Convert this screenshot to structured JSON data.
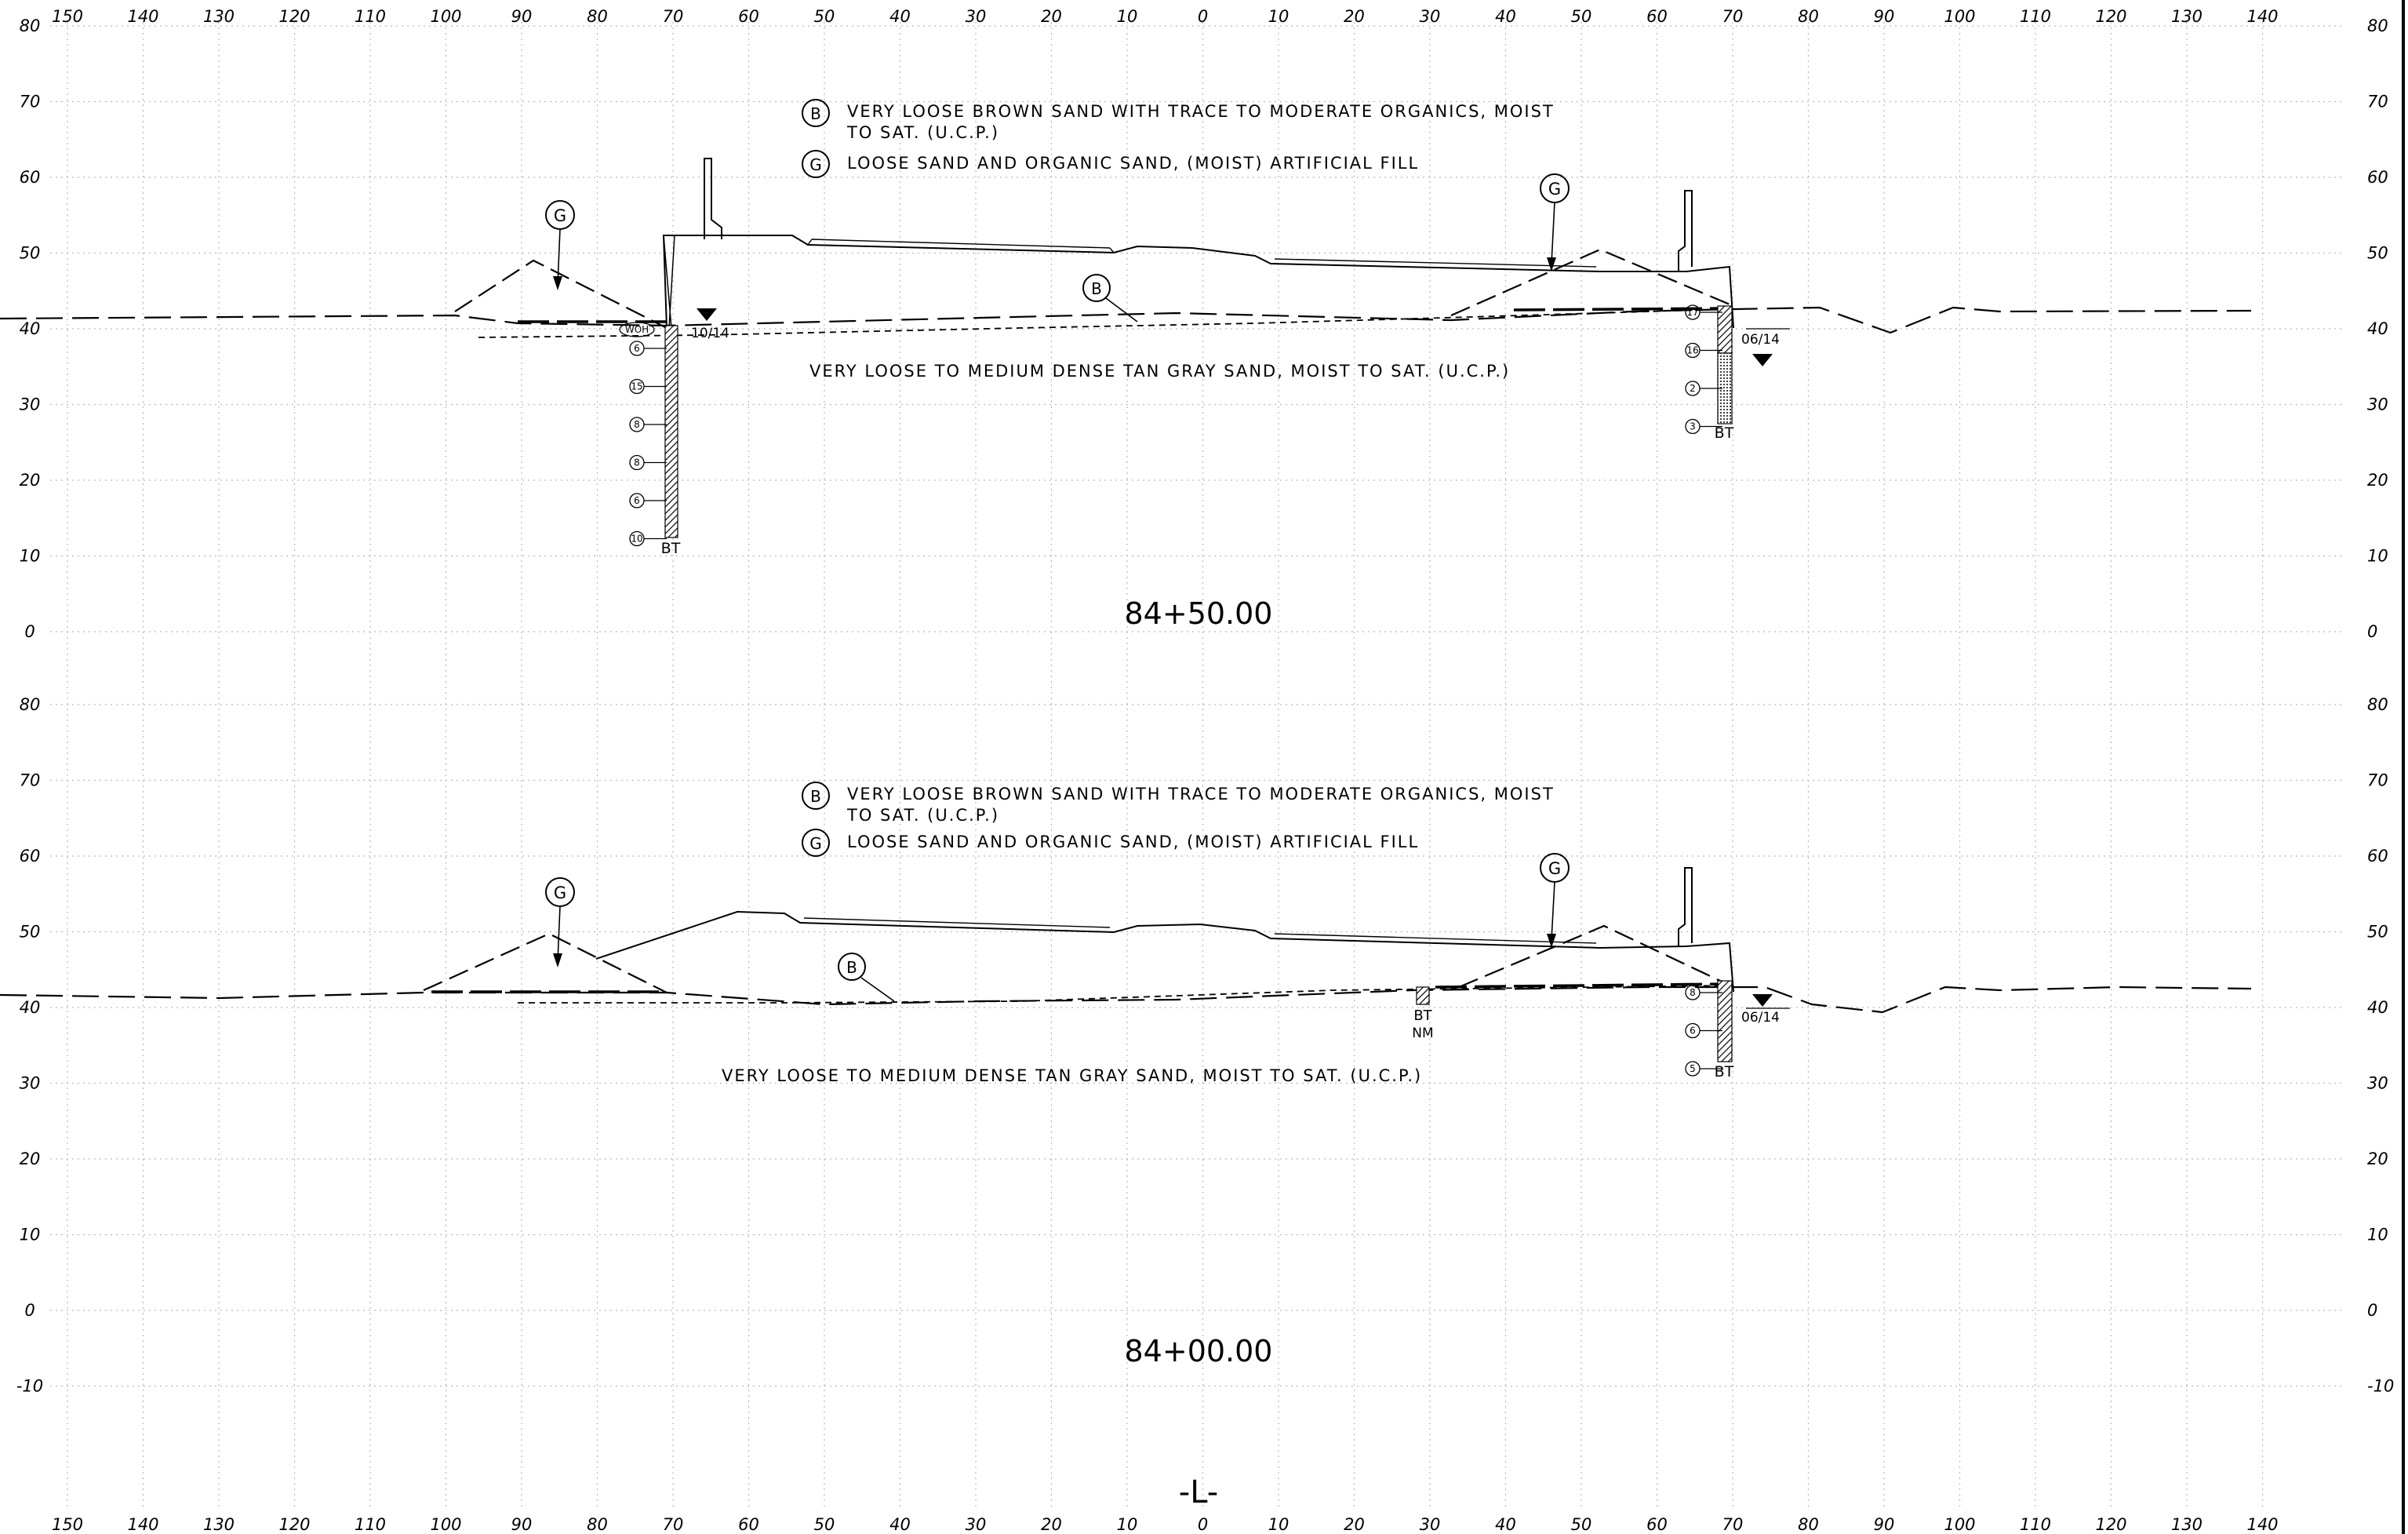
{
  "ruler": {
    "labels": [
      "150",
      "140",
      "130",
      "120",
      "110",
      "100",
      "90",
      "80",
      "70",
      "60",
      "50",
      "40",
      "30",
      "20",
      "10",
      "0",
      "10",
      "20",
      "30",
      "40",
      "50",
      "60",
      "70",
      "80",
      "90",
      "100",
      "110",
      "120",
      "130",
      "140"
    ]
  },
  "elevation_scale": {
    "top_panel": [
      "80",
      "70",
      "60",
      "50",
      "40",
      "30",
      "20",
      "10",
      "0"
    ],
    "bottom_panel": [
      "80",
      "70",
      "60",
      "50",
      "40",
      "30",
      "20",
      "10",
      "0",
      "-10"
    ]
  },
  "sections": [
    {
      "station": "84+50.00",
      "legend": [
        {
          "symbol": "B",
          "text_line1": "VERY LOOSE BROWN SAND WITH TRACE TO MODERATE ORGANICS, MOIST",
          "text_line2": "TO SAT. (U.C.P.)"
        },
        {
          "symbol": "G",
          "text_line1": "LOOSE SAND AND ORGANIC SAND, (MOIST) ARTIFICIAL FILL"
        }
      ],
      "stratum_note": "VERY LOOSE TO MEDIUM DENSE TAN GRAY SAND, MOIST TO SAT. (U.C.P.)",
      "callouts": {
        "g_left": "G",
        "g_right": "G",
        "b": "B"
      },
      "borings": [
        {
          "name": "left",
          "blows": [
            "WOH",
            "6",
            "15",
            "8",
            "8",
            "6",
            "10"
          ],
          "end": "BT",
          "water_date": "10/14"
        },
        {
          "name": "right",
          "blows": [
            "17",
            "16",
            "2",
            "3"
          ],
          "end": "BT",
          "water_date": "06/14"
        }
      ]
    },
    {
      "station": "84+00.00",
      "legend": [
        {
          "symbol": "B",
          "text_line1": "VERY LOOSE BROWN SAND WITH TRACE TO MODERATE ORGANICS, MOIST",
          "text_line2": "TO SAT. (U.C.P.)"
        },
        {
          "symbol": "G",
          "text_line1": "LOOSE SAND AND ORGANIC SAND, (MOIST) ARTIFICIAL FILL"
        }
      ],
      "stratum_note": "VERY LOOSE TO MEDIUM DENSE TAN GRAY SAND, MOIST TO SAT. (U.C.P.)",
      "callouts": {
        "g_left": "G",
        "g_right": "G",
        "b": "B"
      },
      "borings": [
        {
          "name": "middle",
          "blows": [],
          "end": "BT",
          "extra": "NM"
        },
        {
          "name": "right",
          "blows": [
            "8",
            "6",
            "5"
          ],
          "end": "BT",
          "water_date": "06/14"
        }
      ]
    }
  ],
  "centerline_label": "-L-"
}
